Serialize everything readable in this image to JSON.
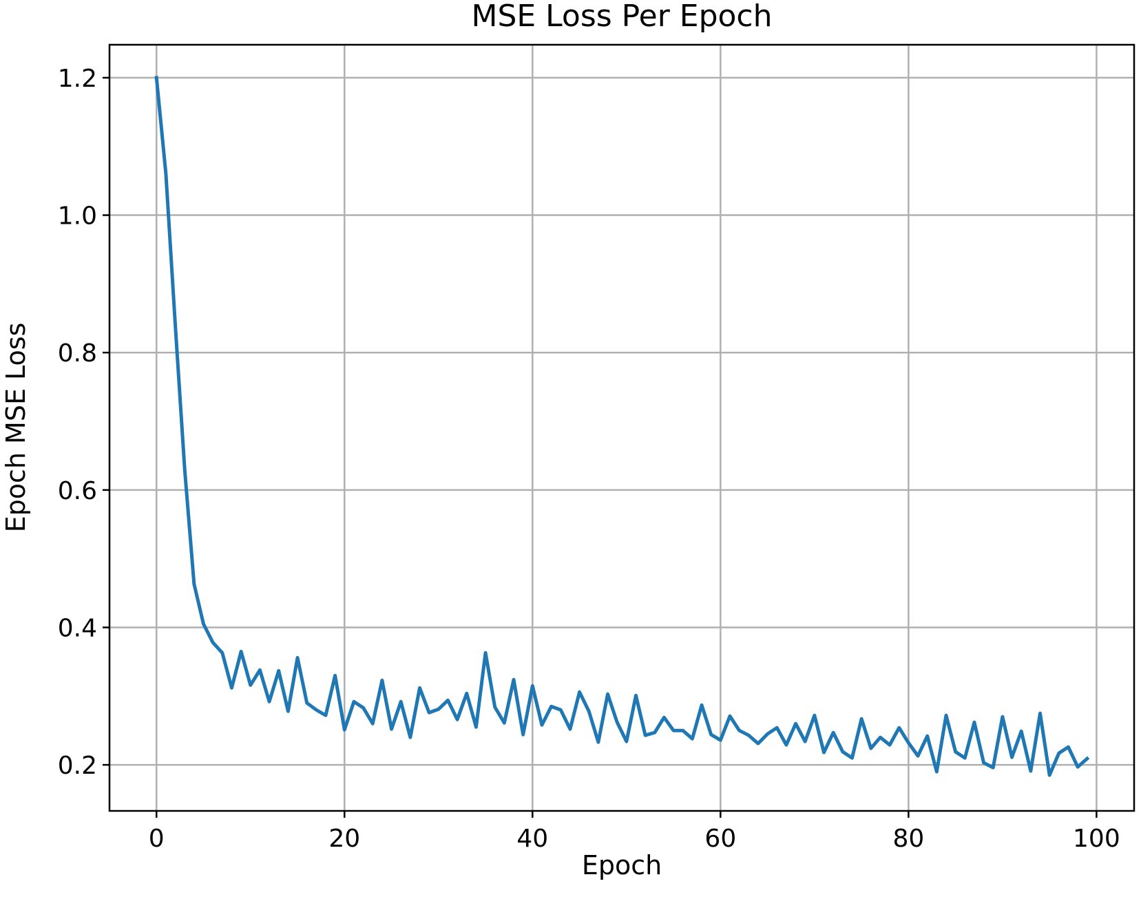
{
  "chart_data": {
    "type": "line",
    "title": "MSE Loss Per Epoch",
    "xlabel": "Epoch",
    "ylabel": "Epoch MSE Loss",
    "xlim": [
      -5,
      104
    ],
    "ylim": [
      0.133,
      1.248
    ],
    "grid": true,
    "line_color": "#1f77b4",
    "x_ticks": [
      0,
      20,
      40,
      60,
      80,
      100
    ],
    "x_tick_labels": [
      "0",
      "20",
      "40",
      "60",
      "80",
      "100"
    ],
    "y_ticks": [
      0.2,
      0.4,
      0.6,
      0.8,
      1.0,
      1.2
    ],
    "y_tick_labels": [
      "0.2",
      "0.4",
      "0.6",
      "0.8",
      "1.0",
      "1.2"
    ],
    "series": [
      {
        "values": [
          1.2,
          1.06,
          0.84,
          0.63,
          0.463,
          0.405,
          0.378,
          0.363,
          0.312,
          0.365,
          0.316,
          0.338,
          0.292,
          0.337,
          0.278,
          0.356,
          0.29,
          0.28,
          0.272,
          0.33,
          0.251,
          0.292,
          0.283,
          0.26,
          0.323,
          0.252,
          0.292,
          0.24,
          0.312,
          0.276,
          0.281,
          0.294,
          0.266,
          0.304,
          0.255,
          0.363,
          0.284,
          0.261,
          0.324,
          0.244,
          0.315,
          0.258,
          0.285,
          0.28,
          0.252,
          0.306,
          0.278,
          0.233,
          0.303,
          0.262,
          0.234,
          0.301,
          0.243,
          0.247,
          0.269,
          0.25,
          0.25,
          0.238,
          0.287,
          0.244,
          0.236,
          0.271,
          0.25,
          0.243,
          0.231,
          0.245,
          0.254,
          0.229,
          0.26,
          0.234,
          0.272,
          0.218,
          0.247,
          0.219,
          0.21,
          0.267,
          0.224,
          0.24,
          0.229,
          0.254,
          0.232,
          0.213,
          0.242,
          0.19,
          0.272,
          0.219,
          0.21,
          0.262,
          0.203,
          0.196,
          0.27,
          0.211,
          0.249,
          0.191,
          0.275,
          0.185,
          0.217,
          0.226,
          0.197,
          0.209
        ]
      }
    ]
  }
}
